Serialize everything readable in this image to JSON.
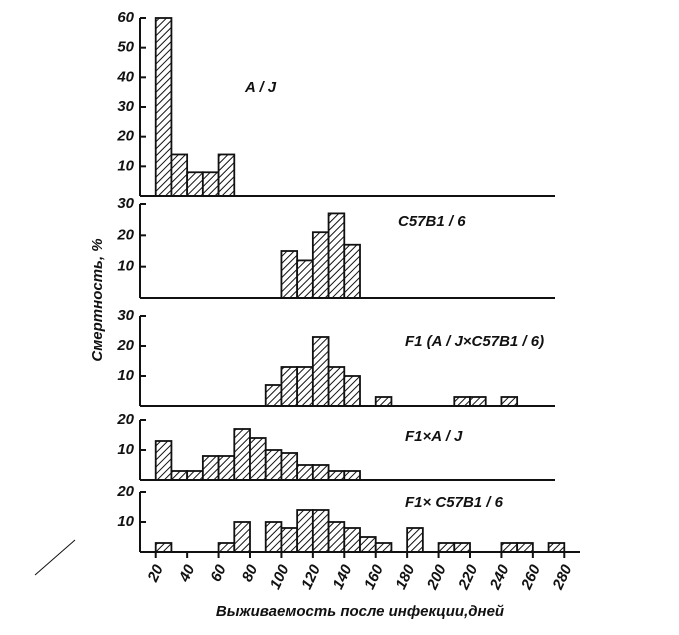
{
  "chart_data": [
    {
      "type": "histogram",
      "label": "A / J",
      "bins": [
        20,
        30,
        40,
        50,
        60,
        70
      ],
      "counts": [
        60,
        14,
        8,
        8,
        14
      ],
      "xlim": [
        10,
        290
      ],
      "ylim": [
        0,
        60
      ],
      "yticks": [
        10,
        20,
        30,
        40,
        50,
        60
      ]
    },
    {
      "type": "histogram",
      "label": "C57B1 / 6",
      "bins": [
        100,
        110,
        120,
        130,
        140,
        150
      ],
      "counts": [
        15,
        12,
        21,
        27,
        17
      ],
      "xlim": [
        10,
        290
      ],
      "ylim": [
        0,
        30
      ],
      "yticks": [
        10,
        20,
        30
      ]
    },
    {
      "type": "histogram",
      "label": "F1 (A / J×C57B1 / 6)",
      "ylabel": "Смертность, %",
      "bins": [
        90,
        100,
        110,
        120,
        130,
        140,
        150,
        160,
        170,
        180,
        190,
        200,
        210,
        220,
        230,
        240,
        250
      ],
      "counts": [
        7,
        13,
        13,
        23,
        13,
        10,
        0,
        3,
        0,
        0,
        0,
        0,
        3,
        3,
        0,
        3
      ],
      "xlim": [
        10,
        290
      ],
      "ylim": [
        0,
        30
      ],
      "yticks": [
        10,
        20,
        30
      ]
    },
    {
      "type": "histogram",
      "label": "F1×A / J",
      "bins": [
        20,
        30,
        40,
        50,
        60,
        70,
        80,
        90,
        100,
        110,
        120,
        130,
        140,
        150
      ],
      "counts": [
        13,
        3,
        3,
        8,
        8,
        17,
        14,
        10,
        9,
        5,
        5,
        3,
        3
      ],
      "xlim": [
        10,
        290
      ],
      "ylim": [
        0,
        20
      ],
      "yticks": [
        10,
        20
      ]
    },
    {
      "type": "histogram",
      "label": "F1× C57B1 / 6",
      "xlabel": "Выживаемость после инфекции,дней",
      "bins": [
        20,
        30,
        40,
        50,
        60,
        70,
        80,
        90,
        100,
        110,
        120,
        130,
        140,
        150,
        160,
        170,
        180,
        190,
        200,
        210,
        220,
        230,
        240,
        250,
        260,
        270,
        280
      ],
      "counts": [
        3,
        0,
        0,
        0,
        3,
        10,
        0,
        10,
        8,
        14,
        14,
        10,
        8,
        5,
        3,
        0,
        8,
        0,
        3,
        3,
        0,
        0,
        3,
        3,
        0,
        3
      ],
      "xlim": [
        10,
        290
      ],
      "ylim": [
        0,
        20
      ],
      "yticks": [
        10,
        20
      ],
      "xticks": [
        20,
        40,
        60,
        80,
        100,
        120,
        140,
        160,
        180,
        200,
        220,
        240,
        260,
        280
      ]
    }
  ]
}
